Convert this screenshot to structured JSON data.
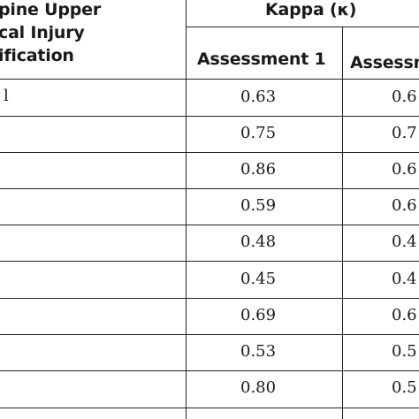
{
  "table": {
    "first_col_header_lines": [
      "pine Upper",
      "cal Injury",
      "ification"
    ],
    "group_header": "Kappa (κ)",
    "sub_headers": [
      "Assessment 1",
      "Assessm"
    ],
    "rows": [
      {
        "label": "l",
        "assessment1": "0.63",
        "assessment2": "0.6"
      },
      {
        "label": "",
        "assessment1": "0.75",
        "assessment2": "0.7"
      },
      {
        "label": "",
        "assessment1": "0.86",
        "assessment2": "0.6"
      },
      {
        "label": "",
        "assessment1": "0.59",
        "assessment2": "0.6"
      },
      {
        "label": "",
        "assessment1": "0.48",
        "assessment2": "0.4"
      },
      {
        "label": "",
        "assessment1": "0.45",
        "assessment2": "0.4"
      },
      {
        "label": "",
        "assessment1": "0.69",
        "assessment2": "0.6"
      },
      {
        "label": "",
        "assessment1": "0.53",
        "assessment2": "0.5"
      },
      {
        "label": "",
        "assessment1": "0.80",
        "assessment2": "0.5"
      }
    ]
  }
}
